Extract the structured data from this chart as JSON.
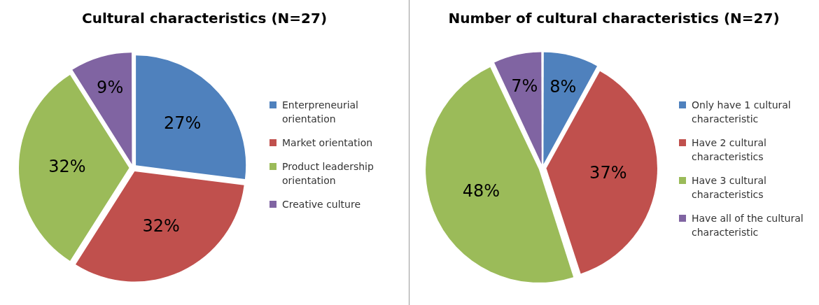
{
  "chart_data": [
    {
      "type": "pie",
      "title": "Cultural characteristics (N=27)",
      "categories": [
        "Enterpreneurial orientation",
        "Market orientation",
        "Product leadership orientation",
        "Creative culture"
      ],
      "values": [
        27,
        32,
        32,
        9
      ],
      "value_labels": [
        "27%",
        "32%",
        "32%",
        "9%"
      ],
      "colors": [
        "#4f81bd",
        "#c0504d",
        "#9bbb59",
        "#8064a2"
      ],
      "legend": "right"
    },
    {
      "type": "pie",
      "title": "Number of cultural characteristics (N=27)",
      "categories": [
        "Only have 1 cultural characteristic",
        "Have 2 cultural characteristics",
        "Have 3 cultural characteristics",
        "Have all of the cultural characteristic"
      ],
      "values": [
        8,
        37,
        48,
        7
      ],
      "value_labels": [
        "8%",
        "37%",
        "48%",
        "7%"
      ],
      "colors": [
        "#4f81bd",
        "#c0504d",
        "#9bbb59",
        "#8064a2"
      ],
      "legend": "right"
    }
  ]
}
